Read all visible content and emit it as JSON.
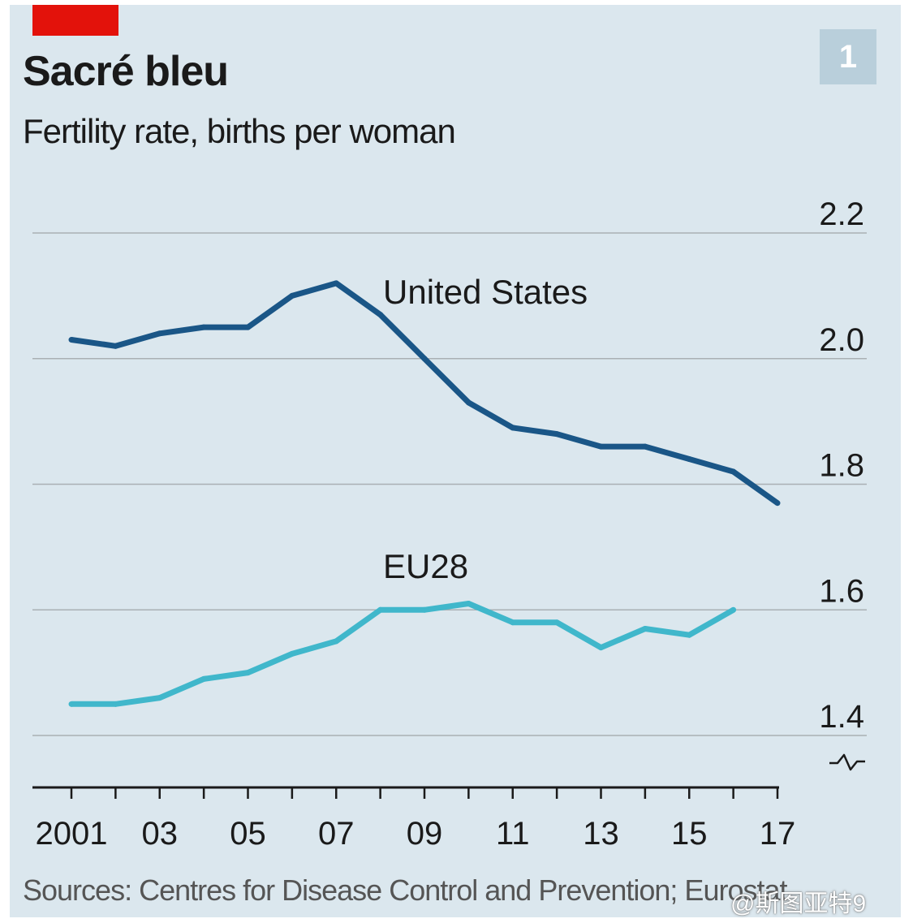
{
  "header": {
    "badge": "1"
  },
  "footer": {
    "source": "Sources: Centres for Disease Control and Prevention; Eurostat",
    "watermark": "@斯图亚特9"
  },
  "colors": {
    "background_panel": "#dbe7ee",
    "tag_red": "#e3120b",
    "badge_bg": "#b9cfdb",
    "united_states": "#1a5687",
    "eu28": "#40b7cb",
    "gridline": "#aab0b4",
    "axis": "#1a1a1a"
  },
  "chart_data": {
    "type": "line",
    "title": "Sacré bleu",
    "subtitle": "Fertility rate, births per woman",
    "xlabel": "",
    "ylabel": "",
    "x": [
      2001,
      2002,
      2003,
      2004,
      2005,
      2006,
      2007,
      2008,
      2009,
      2010,
      2011,
      2012,
      2013,
      2014,
      2015,
      2016,
      2017
    ],
    "x_tick_values": [
      2001,
      2003,
      2005,
      2007,
      2009,
      2011,
      2013,
      2015,
      2017
    ],
    "x_tick_labels": [
      "2001",
      "03",
      "05",
      "07",
      "09",
      "11",
      "13",
      "15",
      "17"
    ],
    "y_ticks": [
      1.4,
      1.6,
      1.8,
      2.0,
      2.2
    ],
    "y_tick_labels": [
      "1.4",
      "1.6",
      "1.8",
      "2.0",
      "2.2"
    ],
    "ylim": [
      1.32,
      2.22
    ],
    "y_axis_break": true,
    "grid": true,
    "y_axis_side": "right",
    "series": [
      {
        "name": "United States",
        "color": "#1a5687",
        "values": [
          2.03,
          2.02,
          2.04,
          2.05,
          2.05,
          2.1,
          2.12,
          2.07,
          2.0,
          1.93,
          1.89,
          1.88,
          1.86,
          1.86,
          1.84,
          1.82,
          1.77
        ]
      },
      {
        "name": "EU28",
        "color": "#40b7cb",
        "values": [
          1.45,
          1.45,
          1.46,
          1.49,
          1.5,
          1.53,
          1.55,
          1.6,
          1.6,
          1.61,
          1.58,
          1.58,
          1.54,
          1.57,
          1.56,
          1.6,
          null
        ]
      }
    ]
  }
}
